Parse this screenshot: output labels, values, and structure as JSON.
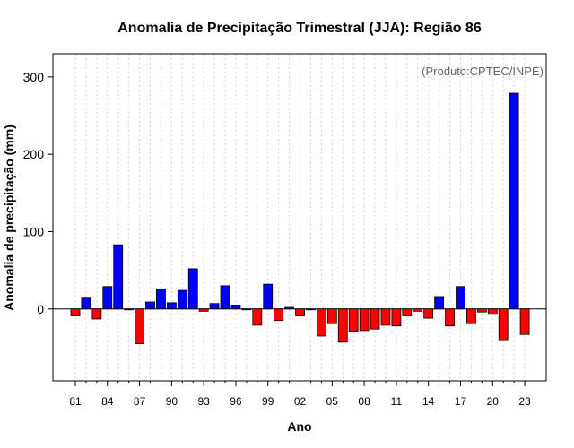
{
  "chart_data": {
    "type": "bar",
    "title": "Anomalia de Precipitação Trimestral (JJA): Região 86",
    "xlabel": "Ano",
    "ylabel": "Anomalia de precipitação (mm)",
    "credit": "(Produto:CPTEC/INPE)",
    "ylim": [
      -93,
      330
    ],
    "yticks": [
      0,
      100,
      200,
      300
    ],
    "x": [
      1981,
      1982,
      1983,
      1984,
      1985,
      1986,
      1987,
      1988,
      1989,
      1990,
      1991,
      1992,
      1993,
      1994,
      1995,
      1996,
      1997,
      1998,
      1999,
      2000,
      2001,
      2002,
      2003,
      2004,
      2005,
      2006,
      2007,
      2008,
      2009,
      2010,
      2011,
      2012,
      2013,
      2014,
      2015,
      2016,
      2017,
      2018,
      2019,
      2020,
      2021,
      2022,
      2023
    ],
    "values": [
      -9,
      14,
      -13,
      29,
      83,
      -1,
      -45,
      9,
      26,
      8,
      24,
      52,
      -3,
      7,
      30,
      5,
      0,
      -21,
      32,
      -15,
      2,
      -9,
      0,
      -35,
      -19,
      -43,
      -29,
      -28,
      -26,
      -21,
      -22,
      -9,
      -3,
      -12,
      16,
      -22,
      29,
      -19,
      -4,
      -7,
      -41,
      279,
      -33
    ],
    "xtick_labels": [
      "81",
      "84",
      "87",
      "90",
      "93",
      "96",
      "99",
      "02",
      "05",
      "08",
      "11",
      "14",
      "17",
      "20",
      "23"
    ],
    "colors": {
      "positive": "#0000ff",
      "negative": "#ff0000",
      "grid": "#d3d3d3",
      "credit": "#666666"
    },
    "grid": true
  }
}
